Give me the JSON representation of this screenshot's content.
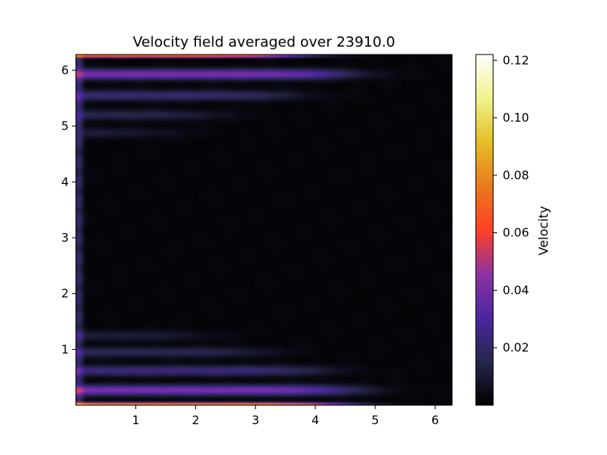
{
  "chart_data": {
    "type": "heatmap",
    "title": "Velocity field averaged over 23910.0",
    "xlabel": "",
    "ylabel": "",
    "xlim": [
      0,
      6.2832
    ],
    "ylim": [
      0,
      6.2832
    ],
    "x_ticks": [
      1,
      2,
      3,
      4,
      5,
      6
    ],
    "y_ticks": [
      1,
      2,
      3,
      4,
      5,
      6
    ],
    "x_tick_labels": [
      "1",
      "2",
      "3",
      "4",
      "5",
      "6"
    ],
    "y_tick_labels": [
      "1",
      "2",
      "3",
      "4",
      "5",
      "6"
    ],
    "colorbar": {
      "label": "Velocity",
      "range": [
        0.0,
        0.122
      ],
      "ticks": [
        0.02,
        0.04,
        0.06,
        0.08,
        0.1,
        0.12
      ],
      "tick_labels": [
        "0.02",
        "0.04",
        "0.06",
        "0.08",
        "0.10",
        "0.12"
      ],
      "colormap": "CMRmap"
    },
    "field_features": [
      {
        "region": "bottom wall jet",
        "y": 0.02,
        "x_extent": [
          0,
          4.3
        ],
        "peak_value": 0.085
      },
      {
        "region": "bottom primary band",
        "y": 0.27,
        "x_extent": [
          0,
          4.5
        ],
        "peak_value": 0.04
      },
      {
        "region": "bottom secondary band",
        "y": 0.62,
        "x_extent": [
          0,
          4.0
        ],
        "peak_value": 0.022
      },
      {
        "region": "bottom tertiary band",
        "y": 0.95,
        "x_extent": [
          0,
          3.0
        ],
        "peak_value": 0.015
      },
      {
        "region": "bottom quaternary band",
        "y": 1.25,
        "x_extent": [
          0,
          2.0
        ],
        "peak_value": 0.01
      },
      {
        "region": "top wall jet",
        "y": 6.26,
        "x_extent": [
          0,
          3.6
        ],
        "peak_value": 0.075
      },
      {
        "region": "top primary band",
        "y": 5.93,
        "x_extent": [
          0,
          4.4
        ],
        "peak_value": 0.04
      },
      {
        "region": "top secondary band",
        "y": 5.55,
        "x_extent": [
          0,
          3.5
        ],
        "peak_value": 0.02
      },
      {
        "region": "top tertiary band",
        "y": 5.2,
        "x_extent": [
          0,
          2.2
        ],
        "peak_value": 0.014
      },
      {
        "region": "top quaternary band",
        "y": 4.88,
        "x_extent": [
          0,
          1.5
        ],
        "peak_value": 0.009
      },
      {
        "region": "left wall layer",
        "x": 0.05,
        "y_extent": [
          0,
          6.2832
        ],
        "peak_value": 0.02
      },
      {
        "region": "interior",
        "value": 0.002
      }
    ]
  }
}
